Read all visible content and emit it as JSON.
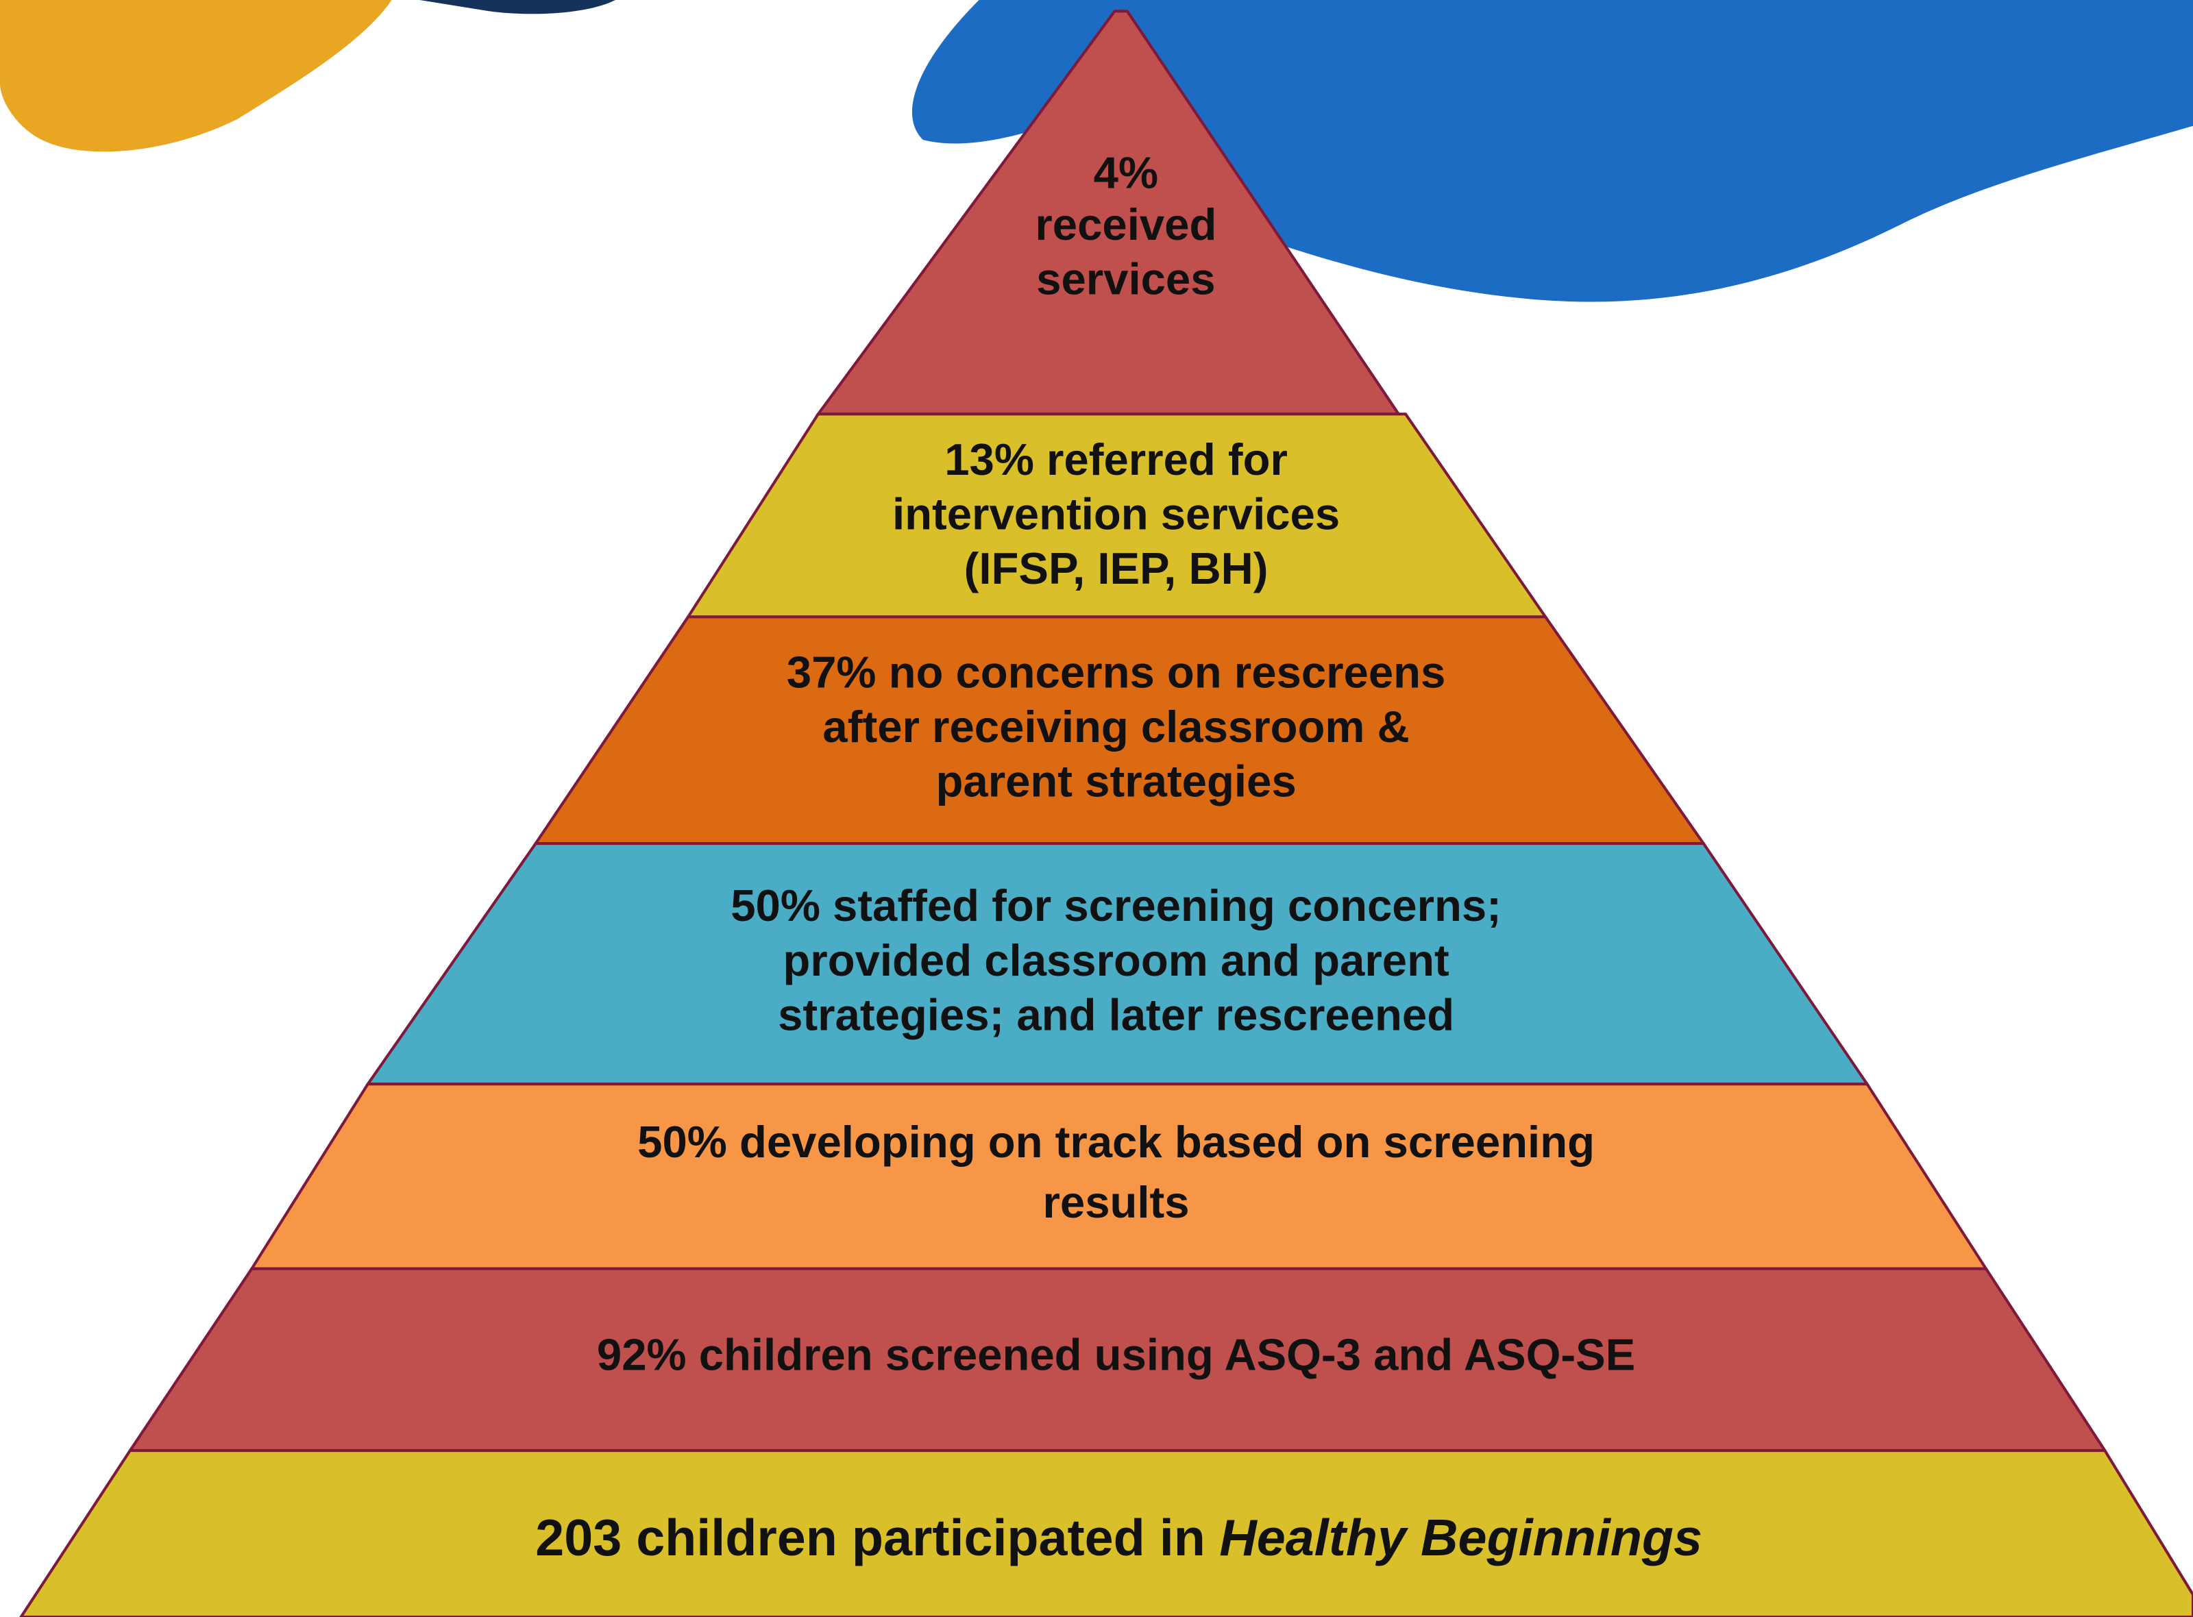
{
  "pyramid": {
    "levels": [
      {
        "lines": [
          "4%",
          "received",
          "services"
        ]
      },
      {
        "lines": [
          "13% referred for",
          "intervention services",
          "(IFSP, IEP, BH)"
        ]
      },
      {
        "lines": [
          "37% no concerns on rescreens",
          "after receiving classroom &",
          "parent strategies"
        ]
      },
      {
        "lines": [
          "50% staffed for screening concerns;",
          "provided classroom and parent",
          "strategies; and later rescreened"
        ]
      },
      {
        "lines": [
          "50% developing on track based on screening",
          "results"
        ]
      },
      {
        "lines": [
          "92% children screened using ASQ-3 and ASQ-SE"
        ]
      },
      {
        "text": "203 children participated in",
        "emphasis": "Healthy Beginnings"
      }
    ]
  }
}
